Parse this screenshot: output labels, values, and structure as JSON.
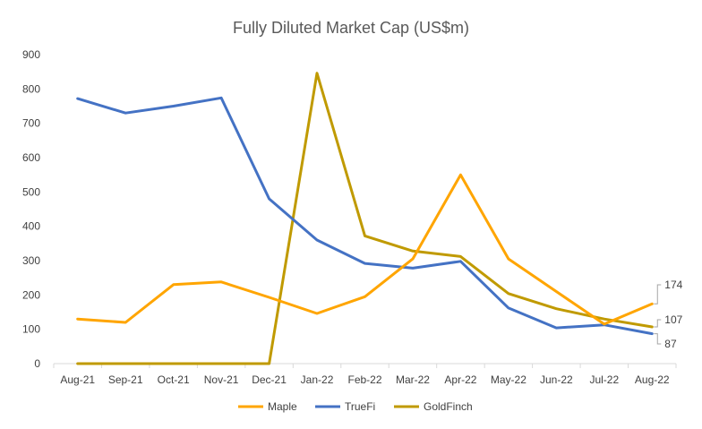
{
  "chart_data": {
    "type": "line",
    "title": "Fully Diluted Market Cap (US$m)",
    "categories": [
      "Aug-21",
      "Sep-21",
      "Oct-21",
      "Nov-21",
      "Dec-21",
      "Jan-22",
      "Feb-22",
      "Mar-22",
      "Apr-22",
      "May-22",
      "Jun-22",
      "Jul-22",
      "Aug-22"
    ],
    "ylim": [
      0,
      900
    ],
    "yticks": [
      0,
      100,
      200,
      300,
      400,
      500,
      600,
      700,
      800,
      900
    ],
    "grid": false,
    "legend": "bottom",
    "series": [
      {
        "name": "Maple",
        "color": "#ffa500",
        "values": [
          130,
          120,
          230,
          238,
          193,
          146,
          195,
          305,
          550,
          305,
          210,
          115,
          174
        ]
      },
      {
        "name": "TrueFi",
        "color": "#4472c4",
        "values": [
          772,
          730,
          750,
          774,
          480,
          360,
          292,
          278,
          298,
          162,
          104,
          113,
          87
        ]
      },
      {
        "name": "GoldFinch",
        "color": "#c09a00",
        "values": [
          0,
          0,
          0,
          0,
          0,
          846,
          372,
          328,
          312,
          204,
          160,
          130,
          107
        ]
      }
    ],
    "data_labels": [
      {
        "series": "Maple",
        "text": "174"
      },
      {
        "series": "GoldFinch",
        "text": "107"
      },
      {
        "series": "TrueFi",
        "text": "87"
      }
    ]
  }
}
